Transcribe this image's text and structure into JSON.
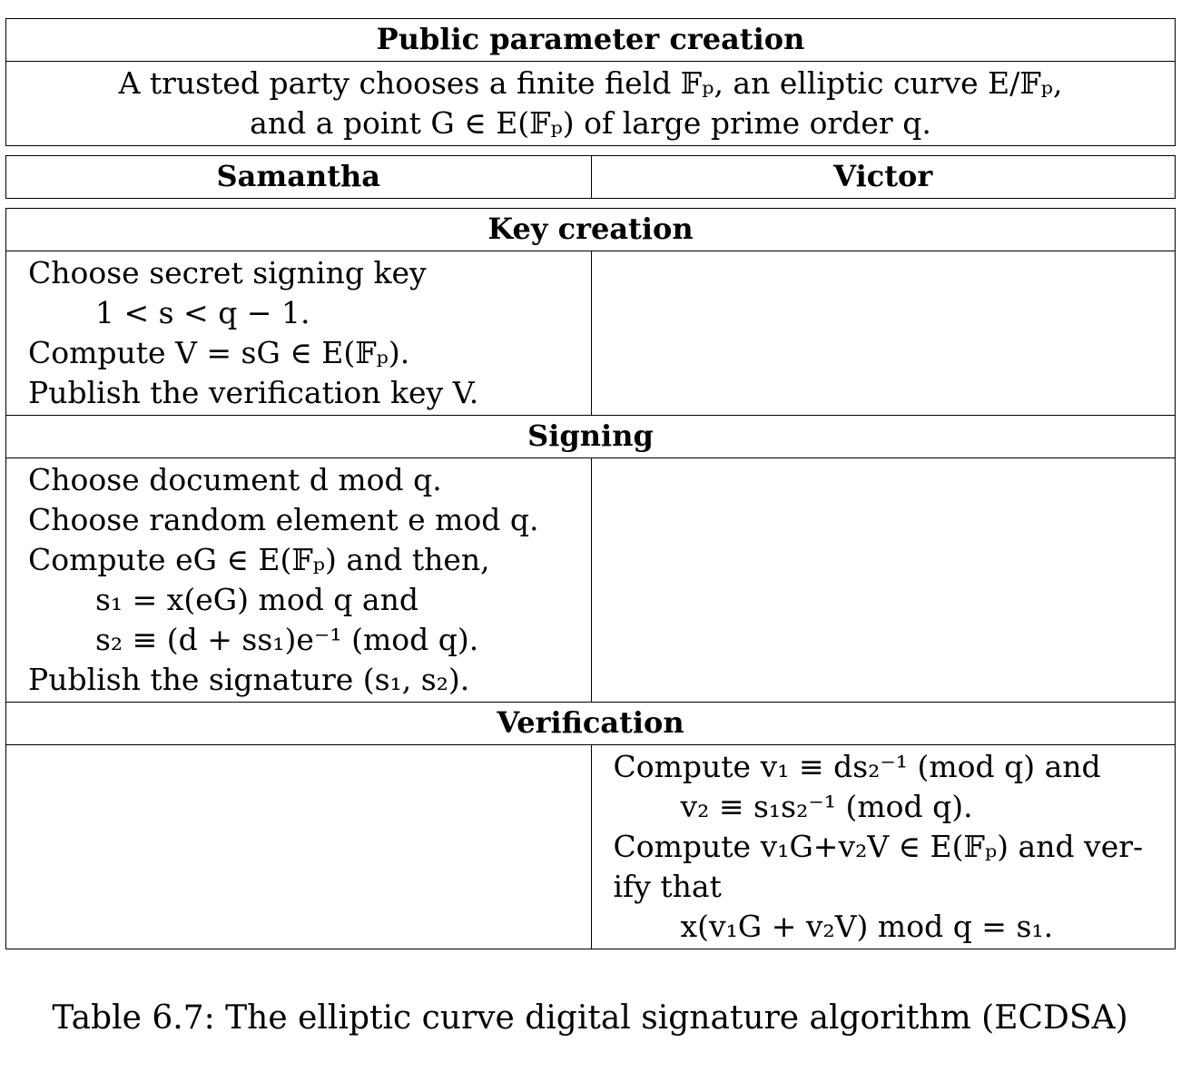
{
  "public": {
    "title": "Public parameter creation",
    "desc_line1": "A trusted party chooses a finite field 𝔽ₚ, an elliptic curve E/𝔽ₚ,",
    "desc_line2": "and a point G ∈ E(𝔽ₚ) of large prime order q."
  },
  "parties": {
    "left": "Samantha",
    "right": "Victor"
  },
  "key_creation": {
    "title": "Key creation",
    "samantha": [
      "Choose secret signing key",
      "1 < s < q − 1.",
      "Compute V = sG ∈ E(𝔽ₚ).",
      "Publish the verification key V."
    ]
  },
  "signing": {
    "title": "Signing",
    "samantha": [
      "Choose document d mod q.",
      "Choose random element e mod q.",
      "Compute eG ∈ E(𝔽ₚ) and then,",
      "s₁ = x(eG) mod q and",
      "s₂ ≡ (d + ss₁)e⁻¹ (mod q).",
      "Publish the signature (s₁, s₂)."
    ]
  },
  "verification": {
    "title": "Verification",
    "victor": [
      "Compute v₁ ≡ ds₂⁻¹ (mod q) and",
      "v₂ ≡ s₁s₂⁻¹ (mod q).",
      "Compute v₁G+v₂V ∈ E(𝔽ₚ) and ver-",
      "ify that",
      "x(v₁G + v₂V) mod q = s₁."
    ]
  },
  "caption": "Table 6.7: The elliptic curve digital signature algorithm (ECDSA)"
}
